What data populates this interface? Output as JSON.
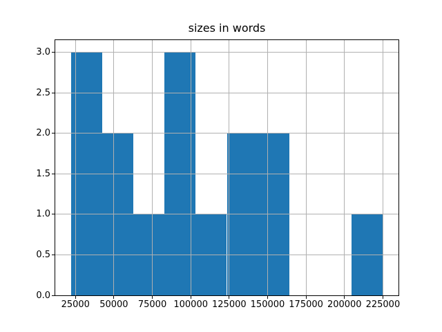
{
  "figure": {
    "background": "#ffffff"
  },
  "chart_data": {
    "type": "bar",
    "subtype": "histogram",
    "title": "sizes in words",
    "bin_edges": [
      22000,
      42300,
      62600,
      82900,
      103200,
      123500,
      143800,
      164100,
      184400,
      204700,
      225000
    ],
    "counts": [
      3,
      2,
      1,
      3,
      1,
      2,
      2,
      0,
      0,
      1
    ],
    "xticks": [
      25000,
      50000,
      75000,
      100000,
      125000,
      150000,
      175000,
      200000,
      225000
    ],
    "xtick_labels": [
      "25000",
      "50000",
      "75000",
      "100000",
      "125000",
      "150000",
      "175000",
      "200000",
      "225000"
    ],
    "yticks": [
      0,
      0.5,
      1,
      1.5,
      2,
      2.5,
      3
    ],
    "ytick_labels": [
      "0.0",
      "0.5",
      "1.0",
      "1.5",
      "2.0",
      "2.5",
      "3.0"
    ],
    "xlim": [
      11850,
      235150
    ],
    "ylim": [
      0,
      3.15
    ],
    "grid": true,
    "grid_above_bars": true,
    "bar_color": "#1f77b4",
    "grid_color": "#b0b0b0",
    "spine_color": "#000000",
    "text_color": "#000000"
  }
}
